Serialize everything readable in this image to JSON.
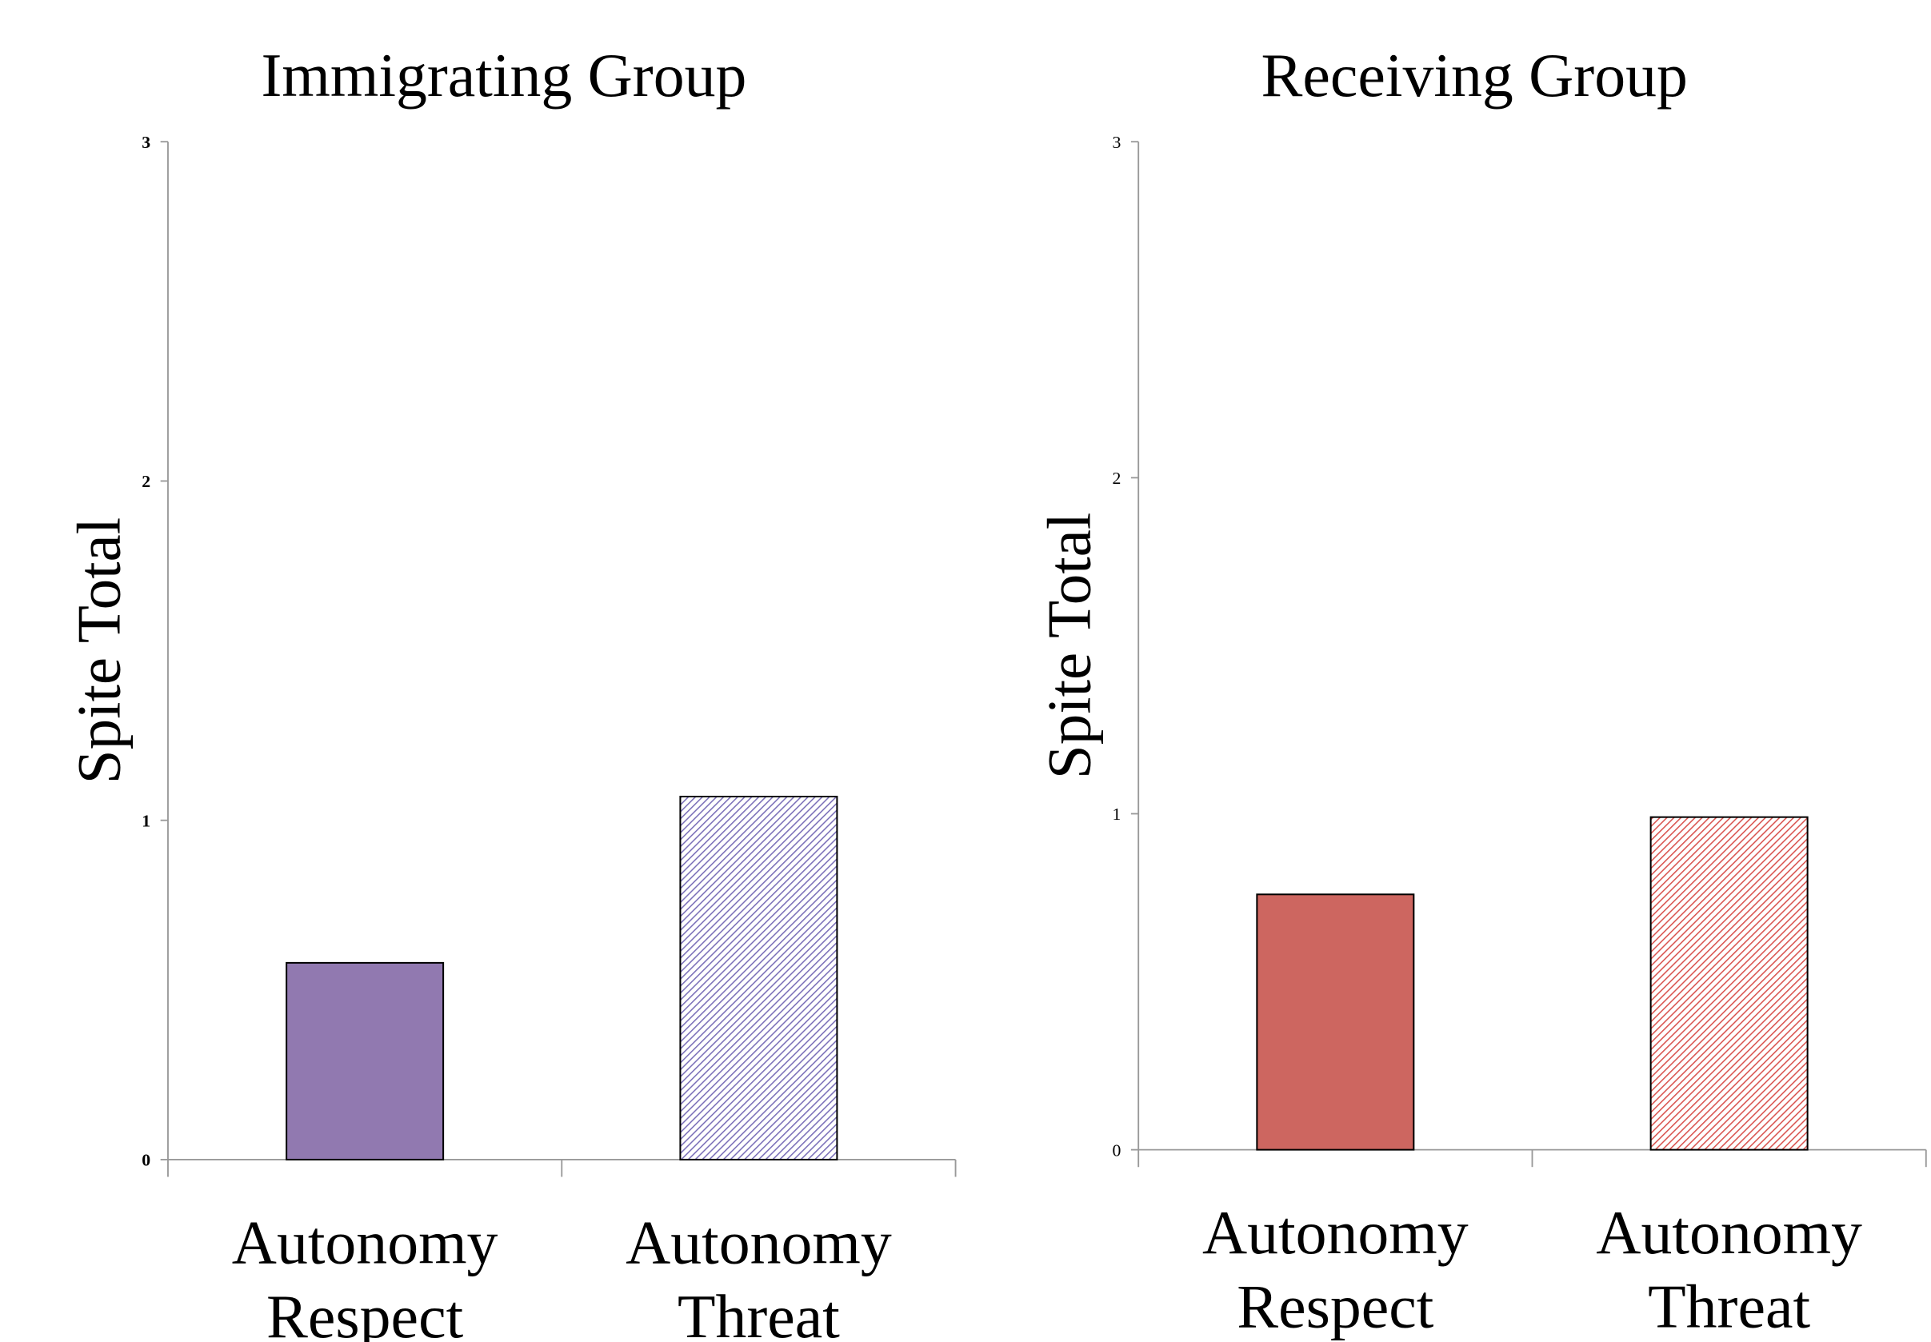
{
  "chart_data": [
    {
      "type": "bar",
      "title": "Immigrating Group",
      "ylabel": "Spite Total",
      "categories": [
        "Autonomy Respect",
        "Autonomy Threat"
      ],
      "values": [
        0.58,
        1.07
      ],
      "colors": [
        "#9179b0",
        "#7a6fb8"
      ],
      "hatch": [
        false,
        true
      ],
      "ylim": [
        0,
        3
      ],
      "yticks": [
        0,
        1,
        2,
        3
      ],
      "tick_bold": true
    },
    {
      "type": "bar",
      "title": "Receiving Group",
      "ylabel": "Spite Total",
      "categories": [
        "Autonomy Respect",
        "Autonomy Threat"
      ],
      "values": [
        0.76,
        0.99
      ],
      "colors": [
        "#cd6660",
        "#d9534f"
      ],
      "hatch": [
        false,
        true
      ],
      "ylim": [
        0,
        3
      ],
      "yticks": [
        0,
        1,
        2,
        3
      ],
      "tick_bold": false
    }
  ]
}
